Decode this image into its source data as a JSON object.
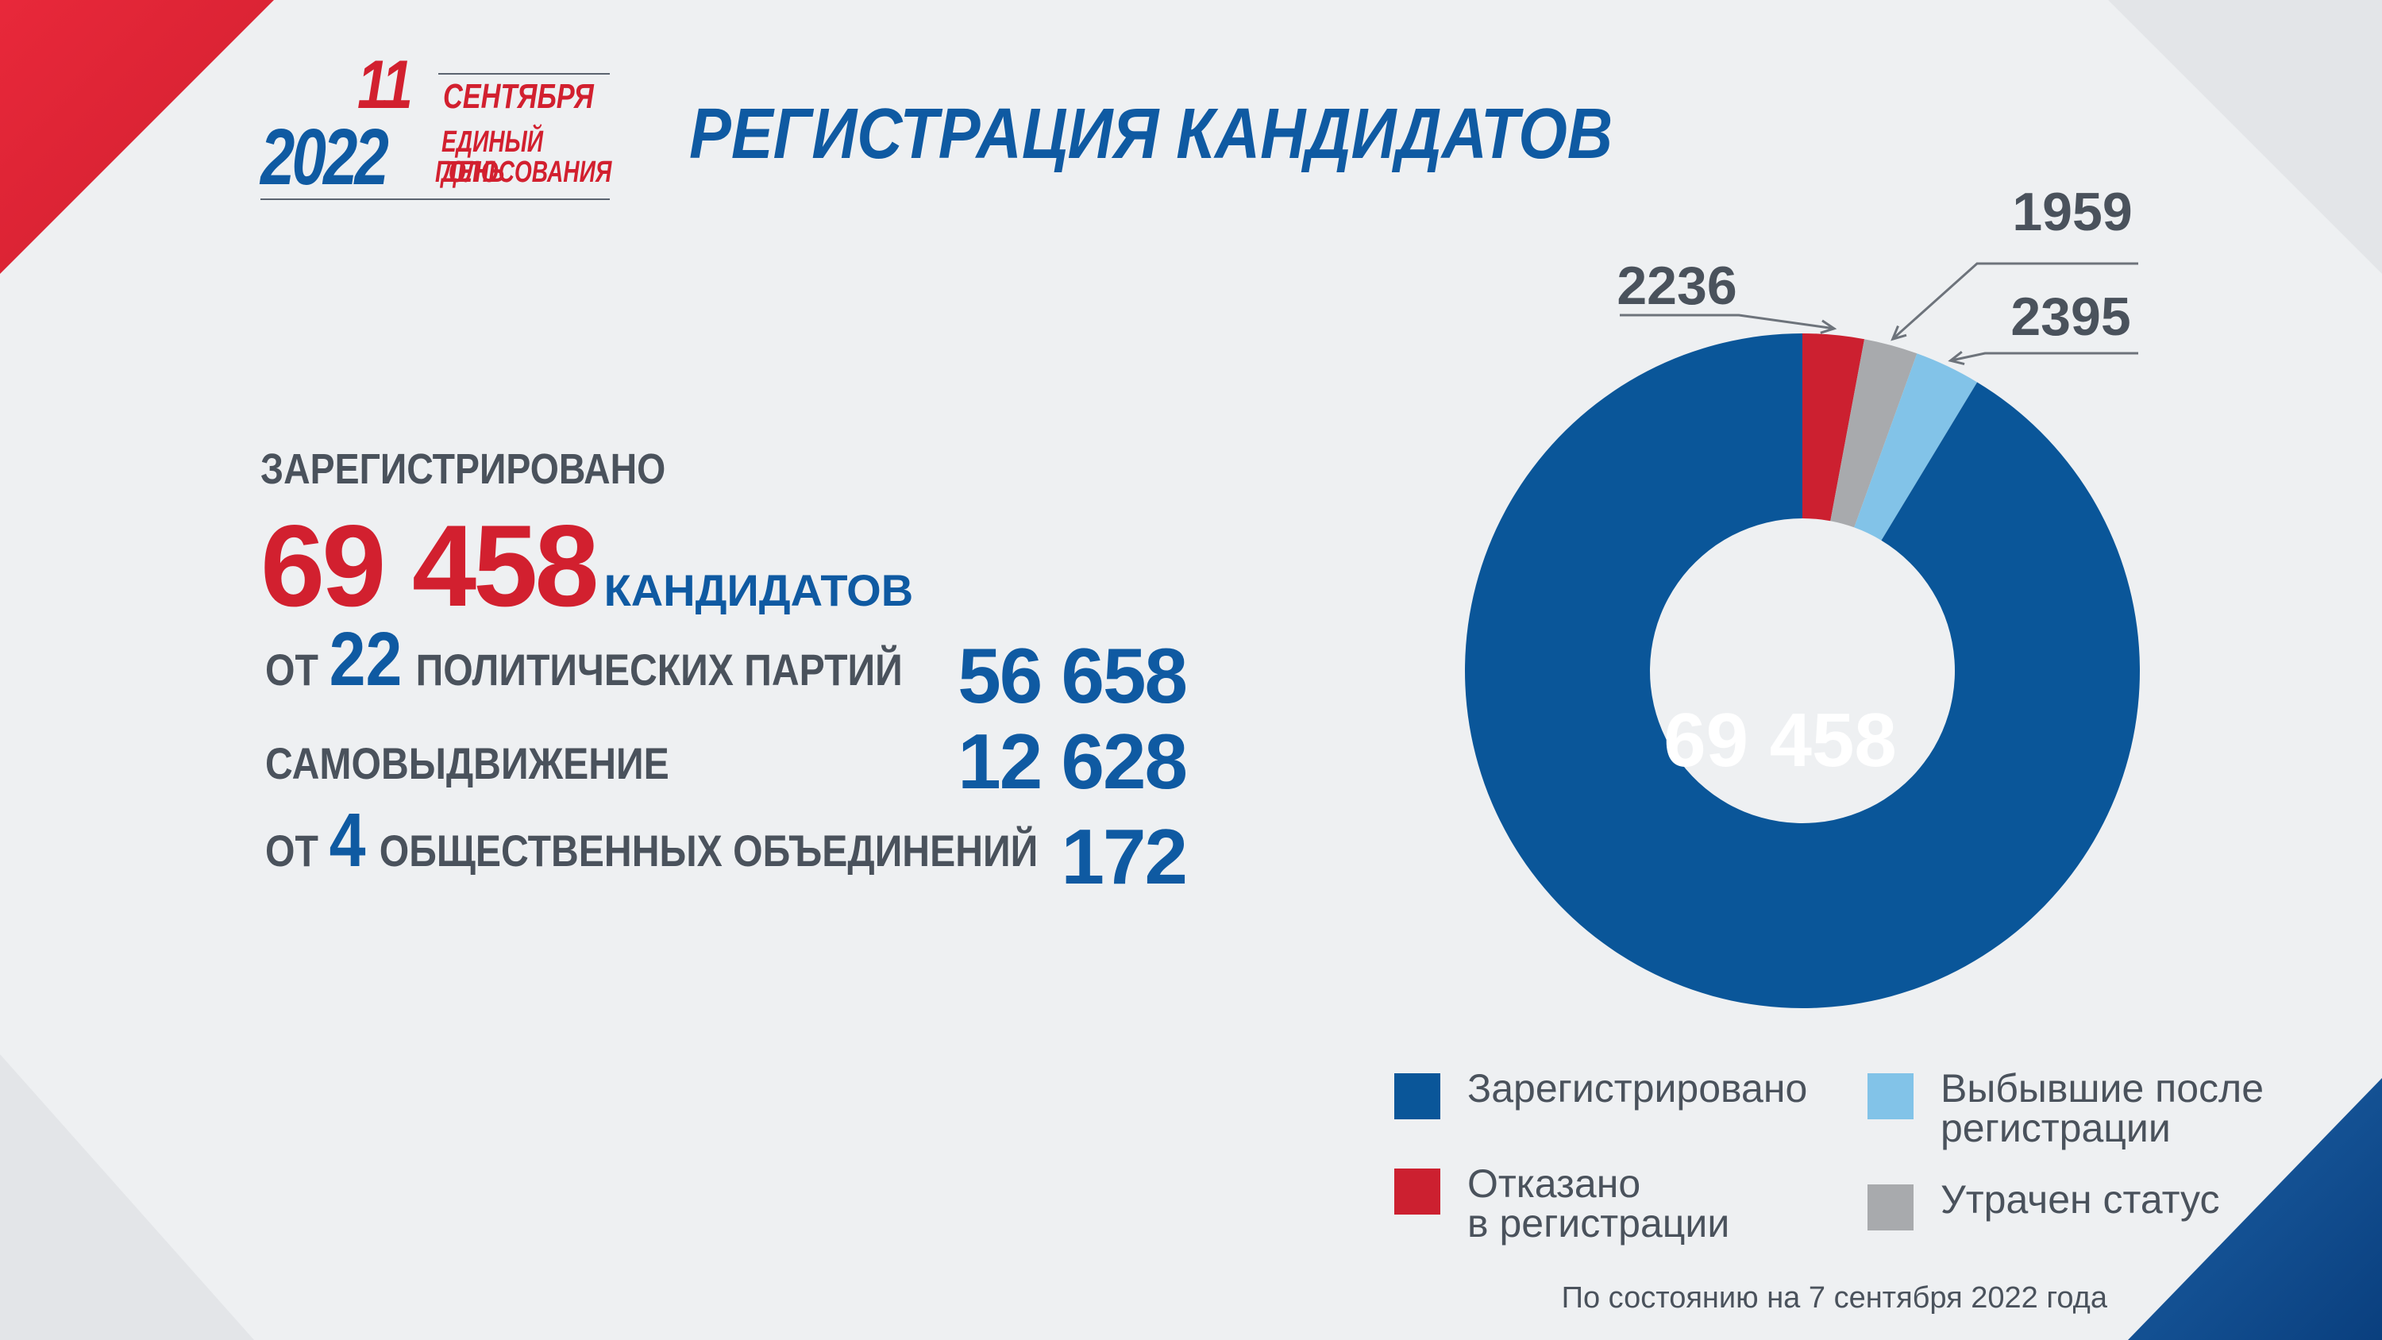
{
  "logo": {
    "day": "11",
    "month": "СЕНТЯБРЯ",
    "year": "2022",
    "subtitle_line1": "ЕДИНЫЙ ДЕНЬ",
    "subtitle_line2": "ГОЛОСОВАНИЯ",
    "red": "#d2202f",
    "blue": "#0f5aa2"
  },
  "title": "РЕГИСТРАЦИЯ КАНДИДАТОВ",
  "summary": {
    "label": "ЗАРЕГИСТРИРОВАНО",
    "total": "69 458",
    "total_unit": "КАНДИДАТОВ",
    "rows": [
      {
        "prefix": "ОТ",
        "number": "22",
        "text": "ПОЛИТИЧЕСКИХ ПАРТИЙ",
        "value": "56 658"
      },
      {
        "prefix": "",
        "number": "",
        "text": "САМОВЫДВИЖЕНИЕ",
        "value": "12 628"
      },
      {
        "prefix": "ОТ",
        "number": "4",
        "text": "ОБЩЕСТВЕННЫХ ОБЪЕДИНЕНИЙ",
        "value": "172"
      }
    ]
  },
  "chart_data": {
    "type": "pie",
    "donut": true,
    "categories": [
      "Зарегистрировано",
      "Отказано в регистрации",
      "Утрачен статус",
      "Выбывшие после регистрации"
    ],
    "values": [
      69458,
      2236,
      1959,
      2395
    ],
    "value_labels": [
      "69 458",
      "2236",
      "1959",
      "2395"
    ],
    "colors": [
      "#0a5699",
      "#cc2030",
      "#a8aaad",
      "#82c3e8"
    ],
    "legend": [
      {
        "label": "Зарегистрировано",
        "color": "#0a5699"
      },
      {
        "label": "Выбывшие после\nрегистрации",
        "color": "#82c3e8"
      },
      {
        "label": "Отказано\nв регистрации",
        "color": "#cc2030"
      },
      {
        "label": "Утрачен статус",
        "color": "#a8aaad"
      }
    ]
  },
  "footnote": "По состоянию на 7 сентября 2022 года"
}
